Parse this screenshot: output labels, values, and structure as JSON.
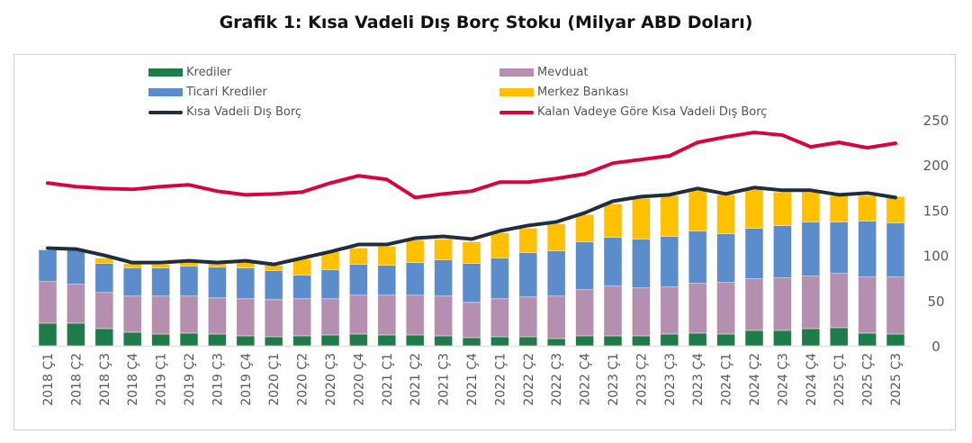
{
  "chart_data": {
    "type": "bar",
    "stacked": true,
    "title": "Grafik 1: Kısa Vadeli Dış Borç Stoku (Milyar ABD Doları)",
    "xlabel": "",
    "ylabel": "",
    "ylim": [
      0,
      250
    ],
    "yticks": [
      0,
      50,
      100,
      150,
      200,
      250
    ],
    "y_axis_side": "right",
    "grid": false,
    "legend_position": "top",
    "categories": [
      "2018 Ç1",
      "2018 Ç2",
      "2018 Ç3",
      "2018 Ç4",
      "2019 Ç1",
      "2019 Ç2",
      "2019 Ç3",
      "2019 Ç4",
      "2020 Ç1",
      "2020 Ç2",
      "2020 Ç3",
      "2020 Ç4",
      "2021 Ç1",
      "2021 Ç2",
      "2021 Ç3",
      "2021 Ç4",
      "2022 Ç1",
      "2022 Ç2",
      "2022 Ç3",
      "2022 Ç4",
      "2023 Ç1",
      "2023 Ç2",
      "2023 Ç3",
      "2023 Ç4",
      "2024 Ç1",
      "2024 Ç2",
      "2024 Ç3",
      "2024 Ç4",
      "2025 Ç1",
      "2025 Ç2",
      "2025 Ç3"
    ],
    "series": [
      {
        "name": "Krediler",
        "type": "bar",
        "color": "#1e7b4a",
        "values": [
          25,
          25,
          19,
          15,
          13,
          14,
          13,
          11,
          10,
          11,
          12,
          13,
          12,
          12,
          11,
          9,
          10,
          10,
          8,
          11,
          11,
          11,
          13,
          14,
          13,
          17,
          17,
          19,
          20,
          14,
          13
        ]
      },
      {
        "name": "Mevduat",
        "type": "bar",
        "color": "#b48fb0",
        "values": [
          46,
          43,
          40,
          40,
          42,
          41,
          40,
          41,
          41,
          41,
          40,
          43,
          44,
          44,
          44,
          39,
          42,
          44,
          47,
          51,
          55,
          53,
          52,
          55,
          57,
          57,
          58,
          58,
          60,
          62,
          63
        ]
      },
      {
        "name": "Ticari Krediler",
        "type": "bar",
        "color": "#5b8ccc",
        "values": [
          35,
          38,
          32,
          31,
          31,
          33,
          34,
          34,
          32,
          26,
          32,
          34,
          33,
          36,
          40,
          43,
          45,
          49,
          50,
          53,
          54,
          54,
          56,
          58,
          54,
          56,
          58,
          60,
          57,
          62,
          60
        ]
      },
      {
        "name": "Merkez Bankası",
        "type": "bar",
        "color": "#ffc000",
        "values": [
          1,
          0,
          6,
          5,
          4,
          5,
          4,
          6,
          6,
          18,
          20,
          18,
          21,
          25,
          23,
          24,
          28,
          27,
          30,
          30,
          37,
          45,
          45,
          45,
          43,
          43,
          37,
          33,
          29,
          28,
          29
        ]
      },
      {
        "name": "Kısa Vadeli Dış Borç",
        "type": "line",
        "color": "#1f2d3d",
        "values": [
          108,
          107,
          100,
          92,
          92,
          94,
          92,
          94,
          90,
          97,
          104,
          112,
          112,
          119,
          121,
          118,
          127,
          133,
          137,
          147,
          160,
          165,
          167,
          174,
          168,
          175,
          172,
          172,
          167,
          169,
          164
        ]
      },
      {
        "name": "Kalan Vadeye Göre Kısa Vadeli Dış Borç",
        "type": "line",
        "color": "#d6063d",
        "values": [
          180,
          176,
          174,
          173,
          176,
          178,
          171,
          167,
          168,
          170,
          180,
          188,
          184,
          164,
          168,
          171,
          181,
          181,
          185,
          190,
          202,
          206,
          210,
          225,
          231,
          236,
          233,
          220,
          225,
          219,
          224
        ]
      }
    ]
  }
}
